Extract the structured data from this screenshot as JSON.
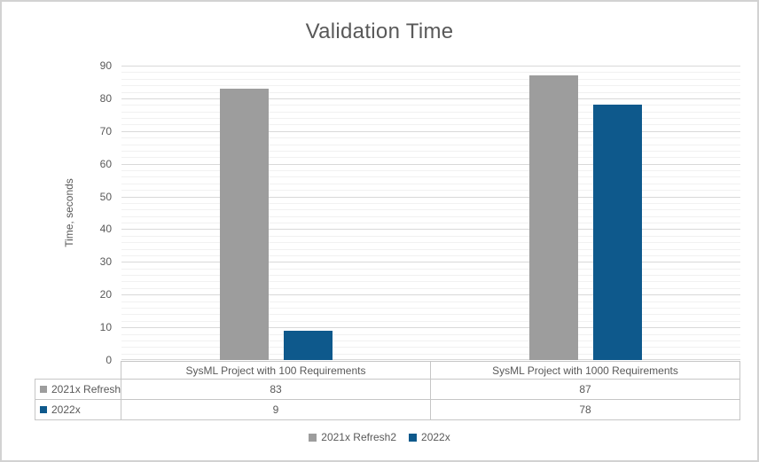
{
  "chart_data": {
    "type": "bar",
    "title": "Validation Time",
    "ylabel": "Time, seconds",
    "xlabel": "",
    "categories": [
      "SysML Project with 100 Requirements",
      "SysML Project with 1000 Requirements"
    ],
    "series": [
      {
        "name": "2021x Refresh2",
        "color": "#9D9D9D",
        "values": [
          83,
          87
        ]
      },
      {
        "name": "2022x",
        "color": "#0E598C",
        "values": [
          9,
          78
        ]
      }
    ],
    "ylim": [
      0,
      90
    ],
    "y_major_step": 10,
    "y_minor_step": 2,
    "y_tick_labels": [
      "0",
      "10",
      "20",
      "30",
      "40",
      "50",
      "60",
      "70",
      "80",
      "90"
    ],
    "grid": "horizontal major+minor",
    "legend_position": "bottom",
    "show_data_table": true
  },
  "colors": {
    "text": "#595959",
    "major_gridline": "#D9D9D9",
    "minor_gridline": "#F1F1F1",
    "table_border": "#C6C6C6",
    "page_border": "#D2D2D2",
    "background": "#FFFFFF"
  }
}
